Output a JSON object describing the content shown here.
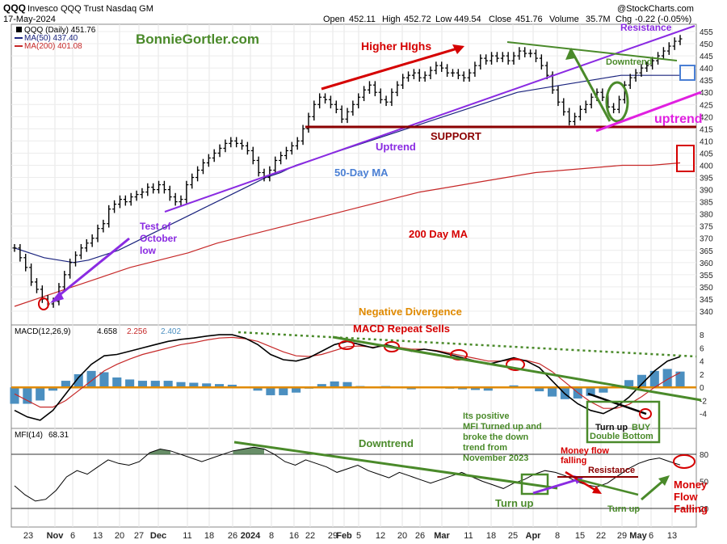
{
  "header": {
    "symbol": "QQQ",
    "name": "Invesco QQQ Trust Nasdaq GM",
    "date": "17-May-2024",
    "open_label": "Open",
    "open": "452.11",
    "high_label": "High",
    "high": "452.72",
    "low_label": "Low",
    "low": "449.54",
    "close_label": "Close",
    "close": "451.76",
    "volume_label": "Volume",
    "volume": "35.7M",
    "chg_label": "Chg",
    "chg": "-0.22 (-0.05%)",
    "credit": "@StockCharts.com"
  },
  "legend": {
    "price": "QQQ (Daily) 451.76",
    "ma50": "MA(50) 437.40",
    "ma200": "MA(200) 401.08"
  },
  "colors": {
    "price": "#000000",
    "ma50": "#1a237e",
    "ma200": "#c62828",
    "green": "#4a8a2a",
    "purple": "#8a2be2",
    "red": "#d50000",
    "orange": "#e08a00",
    "magenta": "#e020e0",
    "blue": "#4a7fd4",
    "hist": "#4b8fc0",
    "maroon": "#8b0000"
  },
  "annotations": {
    "brand": "BonnieGortler.com",
    "higher_highs": "Higher HIghs",
    "resistance_top": "Resistance",
    "downtrend_price": "Downtrend",
    "uptrend_right": "uptrend",
    "support": "SUPPORT",
    "uptrend_mid": "Uptrend",
    "ma50_label": "50-Day MA",
    "ma200_label": "200 Day MA",
    "test_oct_1": "Test of",
    "test_oct_2": "October",
    "test_oct_3": "low",
    "neg_div": "Negative Divergence",
    "macd_sells": "MACD Repeat Sells",
    "turn_up_buy_1": "Turn up",
    "turn_up_buy_2": "BUY",
    "double_bottom": "Double Bottom",
    "mfi_note_1": "Its positive",
    "mfi_note_2": "MFI Turned up and",
    "mfi_note_3": "broke the down",
    "mfi_note_4": "trend from",
    "mfi_note_5": "November 2023",
    "mfi_downtrend": "Downtrend",
    "money_flow_falling_small_1": "Money flow",
    "money_flow_falling_small_2": "falling",
    "mfi_resistance": "Resistance",
    "turn_up_mfi": "Turn up",
    "turn_up_small": "Turn up",
    "mf_falling_1": "Money",
    "mf_falling_2": "Flow",
    "mf_falling_3": "Falling"
  },
  "macd_legend": {
    "label": "MACD(12,26,9)",
    "macd": "4.658",
    "signal": "2.256",
    "hist": "2.402"
  },
  "mfi_legend": {
    "label": "MFI(14)",
    "value": "68.31"
  },
  "x_labels": [
    "23",
    "Nov",
    "6",
    "13",
    "20",
    "27",
    "Dec",
    "11",
    "18",
    "26",
    "2024",
    "8",
    "16",
    "22",
    "29",
    "Feb",
    "5",
    "12",
    "20",
    "26",
    "Mar",
    "11",
    "18",
    "25",
    "Apr",
    "8",
    "15",
    "22",
    "29",
    "May",
    "6",
    "13"
  ],
  "price_ticks": [
    "455",
    "450",
    "445",
    "440",
    "435",
    "430",
    "425",
    "420",
    "415",
    "410",
    "405",
    "400",
    "395",
    "390",
    "385",
    "380",
    "375",
    "370",
    "365",
    "360",
    "355",
    "350",
    "345",
    "340"
  ],
  "macd_ticks": [
    "8",
    "6",
    "4",
    "2",
    "0",
    "-2",
    "-4"
  ],
  "mfi_ticks": [
    "80",
    "50",
    "20"
  ],
  "chart_data": [
    {
      "type": "line",
      "title": "QQQ (Daily)",
      "x_unit": "trading day (Oct 2023 - May 17 2024)",
      "ylim": [
        340,
        457
      ],
      "series": [
        {
          "name": "QQQ (Daily)",
          "values": [
            366,
            362,
            358,
            352,
            349,
            345,
            343,
            344,
            350,
            355,
            360,
            363,
            366,
            368,
            370,
            374,
            376,
            382,
            384,
            386,
            385,
            387,
            388,
            389,
            391,
            390,
            392,
            390,
            387,
            385,
            386,
            392,
            395,
            398,
            401,
            403,
            405,
            407,
            409,
            410,
            409,
            408,
            406,
            402,
            397,
            395,
            398,
            402,
            404,
            406,
            408,
            410,
            415,
            420,
            425,
            428,
            427,
            425,
            423,
            419,
            422,
            425,
            428,
            431,
            433,
            430,
            427,
            426,
            430,
            433,
            436,
            437,
            438,
            436,
            437,
            439,
            441,
            440,
            438,
            438,
            437,
            436,
            438,
            441,
            444,
            443,
            445,
            444,
            445,
            443,
            445,
            447,
            446,
            446,
            444,
            441,
            437,
            431,
            426,
            422,
            418,
            420,
            423,
            425,
            428,
            430,
            428,
            424,
            423,
            427,
            433,
            436,
            438,
            440,
            441,
            443,
            445,
            447,
            449,
            451,
            452
          ]
        },
        {
          "name": "MA(50)",
          "values": [
            366,
            364,
            362,
            361,
            360,
            361,
            363,
            365,
            368,
            371,
            374,
            377,
            380,
            383,
            386,
            389,
            392,
            395,
            397,
            400,
            402,
            404,
            406,
            408,
            410,
            412,
            414,
            416,
            418,
            420,
            422,
            424,
            426,
            428,
            430,
            431,
            432,
            433,
            434,
            435,
            436,
            437,
            437,
            437,
            437,
            437
          ]
        },
        {
          "name": "MA(200)",
          "values": [
            342,
            346,
            350,
            354,
            358,
            361,
            364,
            368,
            371,
            374,
            377,
            380,
            383,
            386,
            389,
            391,
            393,
            395,
            397,
            398,
            399,
            400,
            400,
            401
          ]
        }
      ]
    },
    {
      "type": "line",
      "title": "MACD(12,26,9)",
      "ylim": [
        -6,
        9
      ],
      "series": [
        {
          "name": "MACD",
          "values": [
            -3.5,
            -4.5,
            -5.0,
            -3.5,
            -1.0,
            1.5,
            3.5,
            4.8,
            5.0,
            5.5,
            6.0,
            6.5,
            7.0,
            7.3,
            7.5,
            7.8,
            8.0,
            8.0,
            7.5,
            6.5,
            5.0,
            4.2,
            4.0,
            4.5,
            5.5,
            6.5,
            7.0,
            6.5,
            6.0,
            6.5,
            6.0,
            5.5,
            5.8,
            5.5,
            5.0,
            4.5,
            4.0,
            3.5,
            4.0,
            4.5,
            4.0,
            3.0,
            1.0,
            -1.0,
            -2.5,
            -3.5,
            -4.0,
            -3.0,
            -1.5,
            0.5,
            2.5,
            4.0,
            4.658
          ]
        },
        {
          "name": "Signal",
          "values": [
            -1.0,
            -2.0,
            -3.0,
            -3.0,
            -2.0,
            -0.5,
            1.0,
            2.5,
            3.5,
            4.3,
            5.0,
            5.5,
            6.0,
            6.5,
            6.8,
            7.2,
            7.5,
            7.6,
            7.4,
            7.0,
            6.2,
            5.4,
            4.8,
            4.7,
            5.0,
            5.6,
            6.2,
            6.3,
            6.1,
            6.3,
            6.1,
            5.8,
            5.8,
            5.6,
            5.2,
            4.8,
            4.4,
            4.0,
            4.0,
            4.2,
            4.1,
            3.6,
            2.4,
            0.8,
            -0.8,
            -2.2,
            -3.2,
            -3.2,
            -2.6,
            -1.4,
            0.0,
            1.2,
            2.256
          ]
        },
        {
          "name": "Histogram",
          "values": [
            -2.5,
            -2.5,
            -2.0,
            -0.5,
            1.0,
            2.0,
            2.5,
            2.3,
            1.5,
            1.2,
            1.0,
            1.0,
            1.0,
            0.8,
            0.7,
            0.6,
            0.5,
            0.4,
            0.1,
            -0.5,
            -1.2,
            -1.2,
            -0.8,
            -0.2,
            0.5,
            0.9,
            0.8,
            0.2,
            -0.1,
            0.2,
            -0.1,
            -0.3,
            0.0,
            -0.1,
            -0.2,
            -0.3,
            -0.4,
            -0.5,
            0.0,
            0.3,
            -0.1,
            -0.6,
            -1.4,
            -1.8,
            -1.7,
            -1.3,
            -0.8,
            0.2,
            1.1,
            1.9,
            2.5,
            2.8,
            2.402
          ]
        }
      ]
    },
    {
      "type": "line",
      "title": "MFI(14)",
      "ylim": [
        0,
        100
      ],
      "series": [
        {
          "name": "MFI(14)",
          "values": [
            45,
            35,
            28,
            30,
            40,
            55,
            62,
            58,
            66,
            74,
            70,
            68,
            72,
            82,
            86,
            84,
            80,
            76,
            72,
            76,
            80,
            84,
            86,
            88,
            86,
            80,
            72,
            68,
            74,
            70,
            66,
            60,
            64,
            68,
            62,
            58,
            54,
            60,
            56,
            52,
            48,
            52,
            56,
            60,
            55,
            50,
            46,
            42,
            48,
            52,
            58,
            62,
            60,
            56,
            50,
            46,
            44,
            48,
            56,
            64,
            70,
            74,
            76,
            72,
            68.31
          ]
        }
      ]
    }
  ]
}
